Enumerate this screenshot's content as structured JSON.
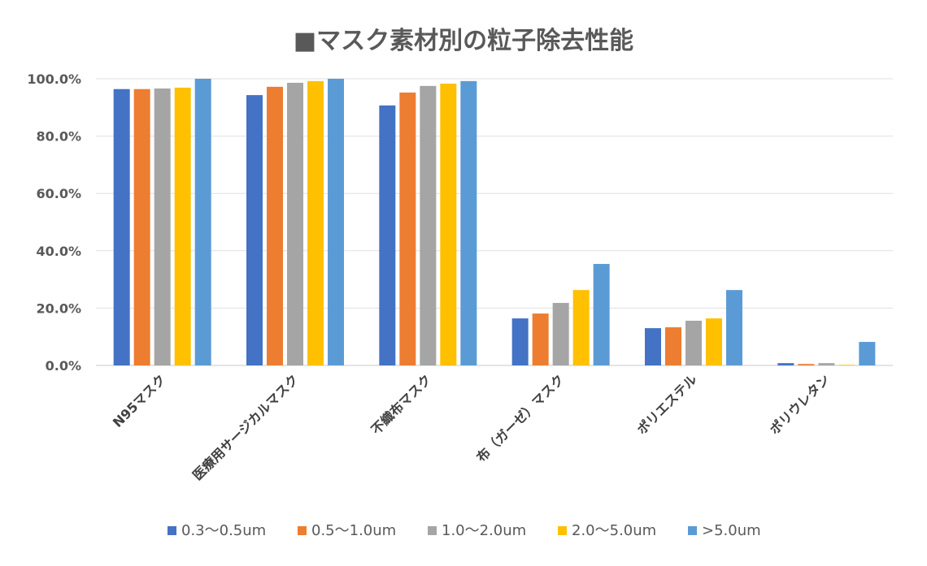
{
  "chart_data": {
    "type": "bar",
    "title": "■マスク素材別の粒子除去性能",
    "categories": [
      "N95マスク",
      "医療用サージカルマスク",
      "不織布マスク",
      "布（ガーゼ）マスク",
      "ポリエステル",
      "ポリウレタン"
    ],
    "ylim": [
      0,
      100
    ],
    "yticks": [
      "0.0%",
      "20.0%",
      "40.0%",
      "60.0%",
      "80.0%",
      "100.0%"
    ],
    "grid": true,
    "legend_position": "bottom",
    "series": [
      {
        "name": "0.3〜0.5um",
        "color": "#4472C4",
        "values": [
          96.4,
          94.3,
          90.7,
          16.4,
          13.0,
          0.8
        ]
      },
      {
        "name": "0.5〜1.0um",
        "color": "#ED7D31",
        "values": [
          96.4,
          97.2,
          95.2,
          18.1,
          13.3,
          0.5
        ]
      },
      {
        "name": "1.0〜2.0um",
        "color": "#A5A5A5",
        "values": [
          96.6,
          98.6,
          97.5,
          21.8,
          15.6,
          0.8
        ]
      },
      {
        "name": "2.0〜5.0um",
        "color": "#FFC000",
        "values": [
          96.9,
          99.2,
          98.3,
          26.3,
          16.4,
          0.2
        ]
      },
      {
        "name": ">5.0um",
        "color": "#5B9BD5",
        "values": [
          100,
          100,
          99.2,
          35.4,
          26.3,
          8.2
        ]
      }
    ]
  }
}
